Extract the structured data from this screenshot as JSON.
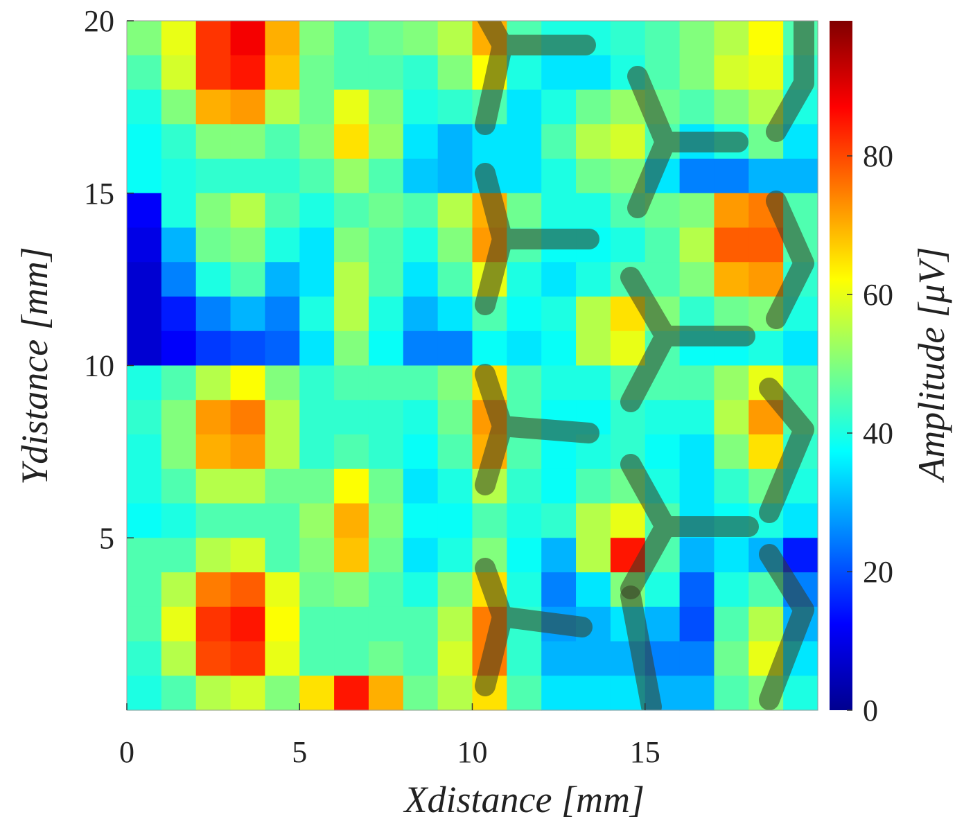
{
  "chart_data": {
    "type": "heatmap",
    "xlabel": "Xdistance [mm]",
    "ylabel": "Ydistance [mm]",
    "colorbar_label": "Amplitude [μV]",
    "colormap": "jet",
    "x": [
      0.5,
      1.5,
      2.5,
      3.5,
      4.5,
      5.5,
      6.5,
      7.5,
      8.5,
      9.5,
      10.5,
      11.5,
      12.5,
      13.5,
      14.5,
      15.5,
      16.5,
      17.5,
      18.5,
      19.5
    ],
    "y": [
      19.5,
      18.5,
      17.5,
      16.5,
      15.5,
      14.5,
      13.5,
      12.5,
      11.5,
      10.5,
      9.5,
      8.5,
      7.5,
      6.5,
      5.5,
      4.5,
      3.5,
      2.5,
      1.5,
      0.5
    ],
    "z": [
      [
        50,
        60,
        82,
        88,
        70,
        50,
        45,
        48,
        50,
        55,
        70,
        45,
        40,
        40,
        42,
        45,
        50,
        55,
        62,
        45
      ],
      [
        45,
        58,
        82,
        85,
        68,
        48,
        45,
        45,
        42,
        50,
        62,
        40,
        35,
        35,
        40,
        45,
        50,
        58,
        60,
        42
      ],
      [
        40,
        50,
        70,
        72,
        55,
        48,
        60,
        50,
        40,
        42,
        45,
        35,
        40,
        48,
        52,
        48,
        45,
        50,
        55,
        40
      ],
      [
        38,
        42,
        50,
        50,
        45,
        50,
        65,
        52,
        35,
        30,
        35,
        35,
        45,
        55,
        58,
        45,
        35,
        40,
        48,
        35
      ],
      [
        38,
        40,
        42,
        42,
        42,
        45,
        52,
        45,
        32,
        30,
        35,
        35,
        40,
        48,
        50,
        35,
        25,
        25,
        30,
        30
      ],
      [
        12,
        40,
        50,
        55,
        45,
        40,
        45,
        48,
        45,
        55,
        70,
        48,
        40,
        40,
        45,
        48,
        50,
        72,
        75,
        45
      ],
      [
        10,
        30,
        48,
        50,
        40,
        35,
        50,
        45,
        40,
        50,
        72,
        45,
        38,
        38,
        40,
        45,
        55,
        78,
        78,
        45
      ],
      [
        8,
        25,
        40,
        45,
        30,
        35,
        55,
        45,
        35,
        45,
        60,
        40,
        35,
        40,
        45,
        45,
        50,
        70,
        72,
        42
      ],
      [
        8,
        15,
        25,
        30,
        25,
        40,
        55,
        40,
        30,
        35,
        45,
        38,
        40,
        55,
        65,
        50,
        42,
        48,
        50,
        40
      ],
      [
        8,
        12,
        18,
        20,
        22,
        35,
        50,
        38,
        25,
        25,
        38,
        35,
        38,
        55,
        60,
        45,
        38,
        38,
        40,
        35
      ],
      [
        40,
        45,
        55,
        62,
        50,
        42,
        45,
        45,
        45,
        50,
        65,
        45,
        40,
        40,
        45,
        45,
        45,
        52,
        60,
        45
      ],
      [
        42,
        50,
        72,
        75,
        55,
        42,
        42,
        42,
        40,
        48,
        72,
        45,
        38,
        38,
        42,
        40,
        40,
        55,
        72,
        45
      ],
      [
        40,
        50,
        70,
        72,
        55,
        42,
        45,
        42,
        38,
        45,
        70,
        45,
        38,
        40,
        42,
        38,
        35,
        50,
        65,
        42
      ],
      [
        40,
        45,
        55,
        55,
        48,
        48,
        62,
        48,
        35,
        40,
        55,
        42,
        38,
        45,
        48,
        40,
        35,
        42,
        48,
        40
      ],
      [
        38,
        40,
        45,
        45,
        45,
        52,
        70,
        50,
        38,
        38,
        45,
        40,
        42,
        55,
        60,
        45,
        35,
        38,
        40,
        35
      ],
      [
        45,
        45,
        55,
        58,
        45,
        50,
        68,
        48,
        35,
        40,
        50,
        38,
        30,
        55,
        85,
        45,
        30,
        35,
        30,
        15
      ],
      [
        45,
        55,
        75,
        78,
        60,
        48,
        50,
        45,
        40,
        50,
        65,
        40,
        25,
        35,
        50,
        40,
        22,
        40,
        45,
        25
      ],
      [
        45,
        60,
        82,
        85,
        62,
        45,
        45,
        45,
        45,
        55,
        75,
        42,
        28,
        30,
        35,
        30,
        20,
        45,
        55,
        30
      ],
      [
        42,
        55,
        80,
        82,
        60,
        45,
        45,
        48,
        45,
        58,
        75,
        42,
        30,
        30,
        30,
        25,
        25,
        48,
        60,
        35
      ],
      [
        40,
        45,
        55,
        58,
        50,
        65,
        85,
        70,
        48,
        55,
        65,
        45,
        35,
        35,
        35,
        30,
        30,
        45,
        50,
        40
      ]
    ],
    "xlim": [
      0,
      20
    ],
    "ylim": [
      0,
      20
    ],
    "clim": [
      0,
      99.5
    ],
    "xticks": [
      0,
      5,
      10,
      15
    ],
    "yticks": [
      5,
      10,
      15,
      20
    ],
    "cticks": [
      0,
      20,
      40,
      60,
      80
    ]
  }
}
